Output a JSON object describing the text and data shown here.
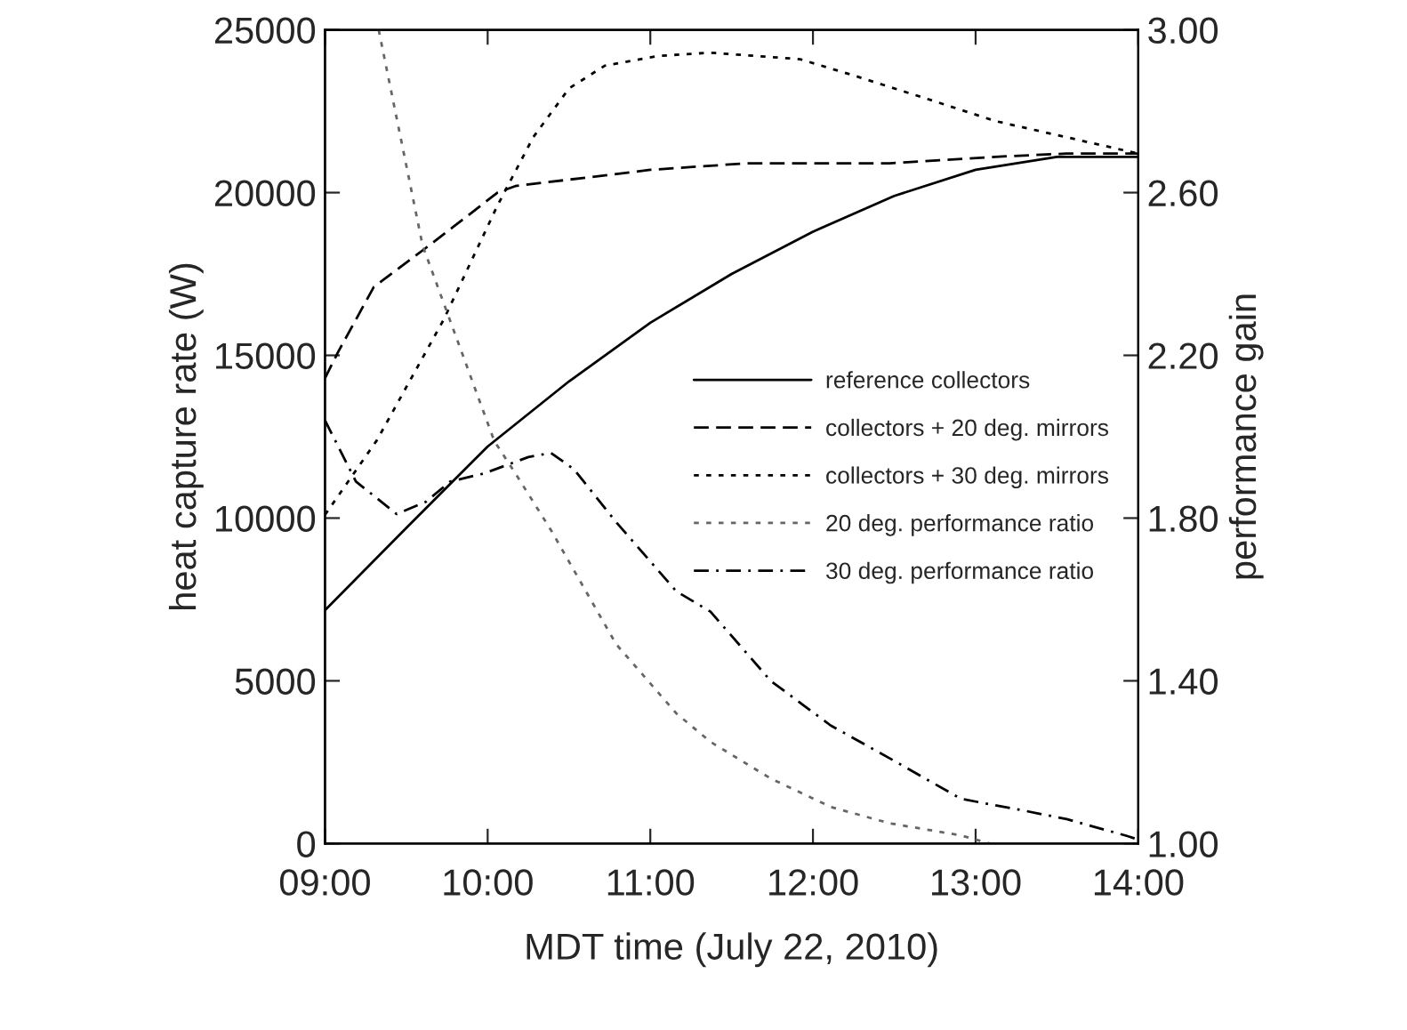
{
  "chart_data": {
    "type": "line",
    "xlabel": "MDT time (July 22, 2010)",
    "ylabel": "heat capture rate (W)",
    "y2label": "performance gain",
    "xlim": [
      9,
      14
    ],
    "xticks": [
      {
        "value": 9,
        "label": "09:00"
      },
      {
        "value": 10,
        "label": "10:00"
      },
      {
        "value": 11,
        "label": "11:00"
      },
      {
        "value": 12,
        "label": "12:00"
      },
      {
        "value": 13,
        "label": "13:00"
      },
      {
        "value": 14,
        "label": "14:00"
      }
    ],
    "ylim": [
      0,
      25000
    ],
    "yticks": [
      0,
      5000,
      10000,
      15000,
      20000,
      25000
    ],
    "y2lim": [
      1,
      3
    ],
    "y2ticks": [
      {
        "value": 1,
        "label": "1.00"
      },
      {
        "value": 1.4,
        "label": "1.40"
      },
      {
        "value": 1.8,
        "label": "1.80"
      },
      {
        "value": 2.2,
        "label": "2.20"
      },
      {
        "value": 2.6,
        "label": "2.60"
      },
      {
        "value": 3,
        "label": "3.00"
      }
    ],
    "legend": "right",
    "grid": false,
    "series": [
      {
        "name": "reference collectors",
        "color": "#000000",
        "line_style": "solid",
        "x": [
          9,
          9.5,
          10,
          10.5,
          11,
          11.5,
          12,
          12.5,
          13,
          13.5,
          14
        ],
        "values": [
          7170,
          9700,
          12200,
          14200,
          16000,
          17500,
          18800,
          19900,
          20700,
          21100,
          21100
        ]
      },
      {
        "name": "collectors + 20 deg. mirrors",
        "color": "#000000",
        "line_style": "dashed",
        "x": [
          9,
          9.08,
          9.3,
          9.62,
          9.88,
          10.06,
          10.17,
          11,
          11.59,
          12.47,
          13.12,
          13.56,
          14
        ],
        "values": [
          14300,
          15100,
          17100,
          18300,
          19300,
          20000,
          20200,
          20700,
          20900,
          20900,
          21100,
          21200,
          21200
        ]
      },
      {
        "name": "collectors + 30 deg. mirrors",
        "color": "#000000",
        "line_style": "dotted",
        "x": [
          9,
          9.32,
          9.73,
          10.06,
          10.28,
          10.5,
          10.72,
          11.05,
          11.37,
          11.92,
          12.25,
          12.69,
          13.12,
          13.56,
          14
        ],
        "values": [
          10100,
          12400,
          16100,
          19600,
          21700,
          23200,
          23900,
          24200,
          24300,
          24100,
          23600,
          22900,
          22200,
          21700,
          21200
        ]
      },
      {
        "name": "20 deg. performance ratio",
        "color": "#666666",
        "line_style": "dotted",
        "axis": "y2",
        "x": [
          9.33,
          9.6,
          10.04,
          10.17,
          10.39,
          10.79,
          11.16,
          11.37,
          11.74,
          12.11,
          12.47,
          12.91,
          13.09
        ],
        "values": [
          3.0,
          2.47,
          1.99,
          1.91,
          1.77,
          1.49,
          1.32,
          1.25,
          1.16,
          1.09,
          1.05,
          1.02,
          1.0
        ]
      },
      {
        "name": "30 deg. performance ratio",
        "color": "#000000",
        "line_style": "dashdot",
        "axis": "y2",
        "x": [
          9,
          9.19,
          9.44,
          9.62,
          9.77,
          9.98,
          10.25,
          10.39,
          10.53,
          10.79,
          11.16,
          11.37,
          11.74,
          12.11,
          12.47,
          12.91,
          13.31,
          13.56,
          13.92,
          14
        ],
        "values": [
          2.04,
          1.89,
          1.81,
          1.84,
          1.89,
          1.91,
          1.95,
          1.96,
          1.92,
          1.79,
          1.62,
          1.57,
          1.4,
          1.29,
          1.21,
          1.11,
          1.08,
          1.06,
          1.02,
          1.01
        ]
      }
    ]
  }
}
